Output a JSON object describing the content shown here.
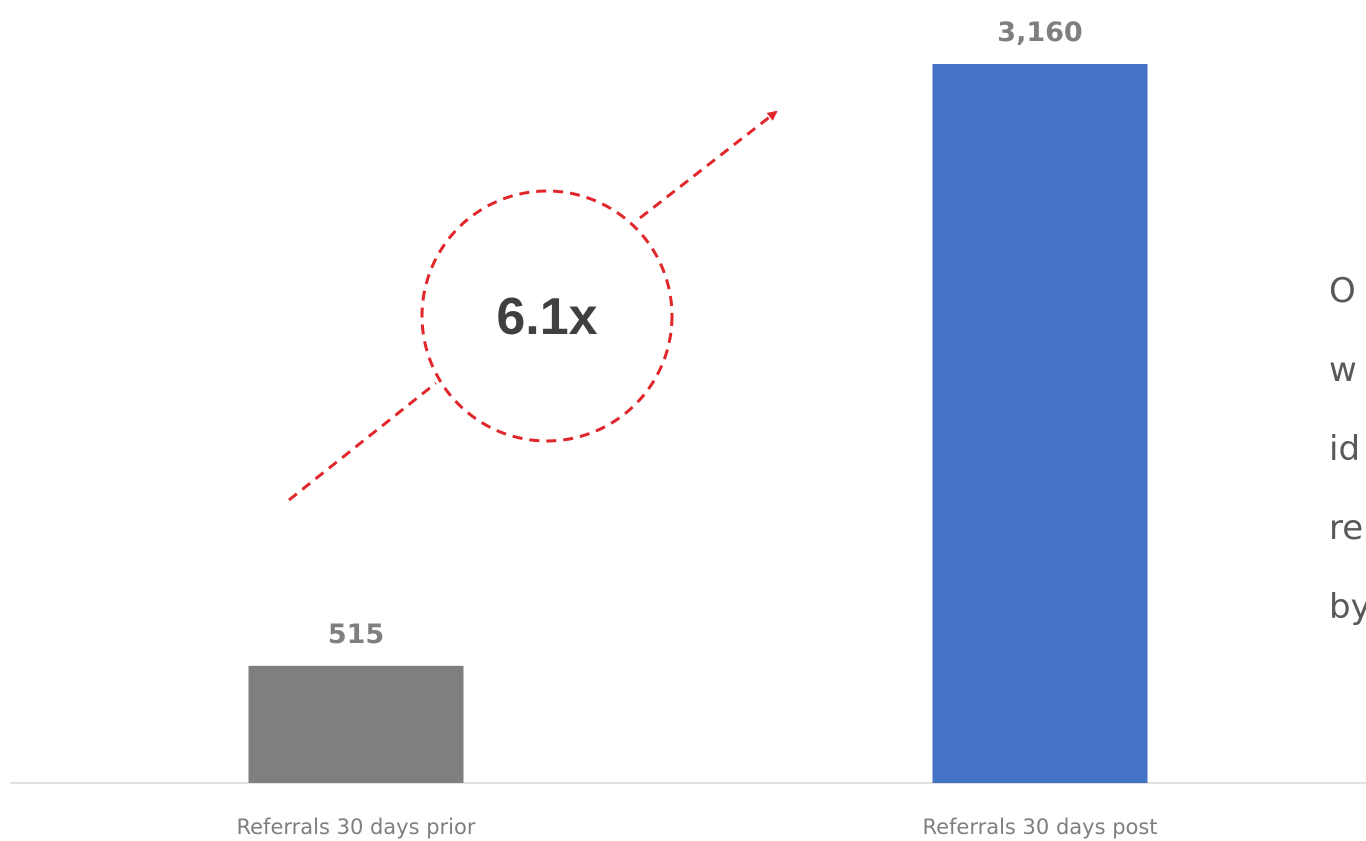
{
  "chart_data": {
    "type": "bar",
    "categories": [
      "Referrals 30 days prior",
      "Referrals 30 days post"
    ],
    "values": [
      515,
      3160
    ],
    "value_labels": [
      "515",
      "3,160"
    ],
    "ylim": [
      0,
      3160
    ],
    "grid": false,
    "legend": "none",
    "colors": [
      "#7f7f7f",
      "#4472c4"
    ],
    "annotation": {
      "text": "6.1x",
      "color": "#e0262b"
    }
  },
  "side_text_fragments": [
    "O",
    "w",
    "id",
    "re",
    "by"
  ]
}
